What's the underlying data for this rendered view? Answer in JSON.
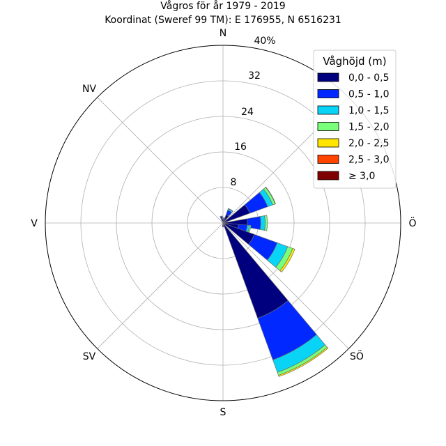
{
  "chart_data": {
    "type": "windrose",
    "title": "Vågros för år 1979 - 2019",
    "subtitle": "Koordinat (Sweref 99 TM): E 176955, N 6516231",
    "direction_labels": [
      "N",
      "NV",
      "V",
      "SV",
      "S",
      "SÖ",
      "Ö"
    ],
    "radial_ticks": [
      "8",
      "16",
      "24",
      "32",
      "40%"
    ],
    "radial_max": 40,
    "legend": {
      "title": "Våghöjd (m)",
      "placement": "top-right"
    },
    "bins": [
      {
        "label": "0,0 - 0,5",
        "color": "#00007f"
      },
      {
        "label": "0,5 - 1,0",
        "color": "#0028ff"
      },
      {
        "label": "1,0 - 1,5",
        "color": "#0ad4f5"
      },
      {
        "label": "1,5 - 2,0",
        "color": "#7aff7a"
      },
      {
        "label": "2,0 - 2,5",
        "color": "#ffe500"
      },
      {
        "label": "2,5 - 3,0",
        "color": "#ff4400"
      },
      {
        "label": "≥ 3,0",
        "color": "#7f0000"
      }
    ],
    "sectors": [
      {
        "direction_deg": 30,
        "values": [
          2.0,
          1.1,
          0.3,
          0.1,
          0,
          0,
          0
        ]
      },
      {
        "direction_deg": 60,
        "values": [
          6.4,
          4.3,
          1.2,
          0.6,
          0.1,
          0,
          0
        ]
      },
      {
        "direction_deg": 90,
        "values": [
          5.5,
          3.0,
          1.0,
          0.5,
          0,
          0,
          0
        ]
      },
      {
        "direction_deg": 105,
        "values": [
          3.5,
          2.0,
          0.5,
          0.3,
          0,
          0,
          0
        ]
      },
      {
        "direction_deg": 120,
        "values": [
          7.5,
          5.5,
          2.5,
          1.2,
          0.5,
          0,
          0
        ]
      },
      {
        "direction_deg": 150,
        "values": [
          22.8,
          10.0,
          3.0,
          0.7,
          0.3,
          0,
          0
        ]
      },
      {
        "direction_deg": 180,
        "values": [
          0.5,
          0.3,
          0.1,
          0,
          0,
          0,
          0
        ]
      },
      {
        "direction_deg": 345,
        "values": [
          1.0,
          0.5,
          0.1,
          0,
          0,
          0,
          0
        ]
      },
      {
        "direction_deg": 15,
        "values": [
          0.8,
          0.3,
          0.1,
          0,
          0,
          0,
          0
        ]
      }
    ],
    "grid": true
  }
}
